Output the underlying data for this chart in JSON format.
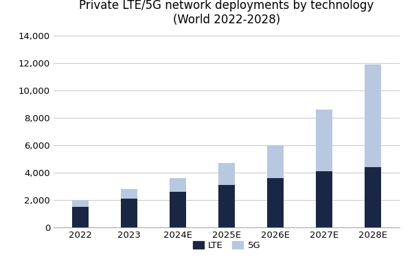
{
  "categories": [
    "2022",
    "2023",
    "2024E",
    "2025E",
    "2026E",
    "2027E",
    "2028E"
  ],
  "lte_values": [
    1500,
    2100,
    2600,
    3100,
    3600,
    4100,
    4400
  ],
  "5g_values": [
    500,
    700,
    1000,
    1600,
    2400,
    4500,
    7500
  ],
  "lte_color": "#1a2744",
  "5g_color": "#b8c8e0",
  "title_line1": "Private LTE/5G network deployments by technology",
  "title_line2": "(World 2022-2028)",
  "ylim": [
    0,
    14000
  ],
  "yticks": [
    0,
    2000,
    4000,
    6000,
    8000,
    10000,
    12000,
    14000
  ],
  "legend_lte": "LTE",
  "legend_5g": "5G",
  "background_color": "#ffffff",
  "bar_width": 0.35,
  "grid_color": "#cccccc",
  "title_fontsize": 12,
  "tick_fontsize": 9.5,
  "legend_fontsize": 9.5
}
